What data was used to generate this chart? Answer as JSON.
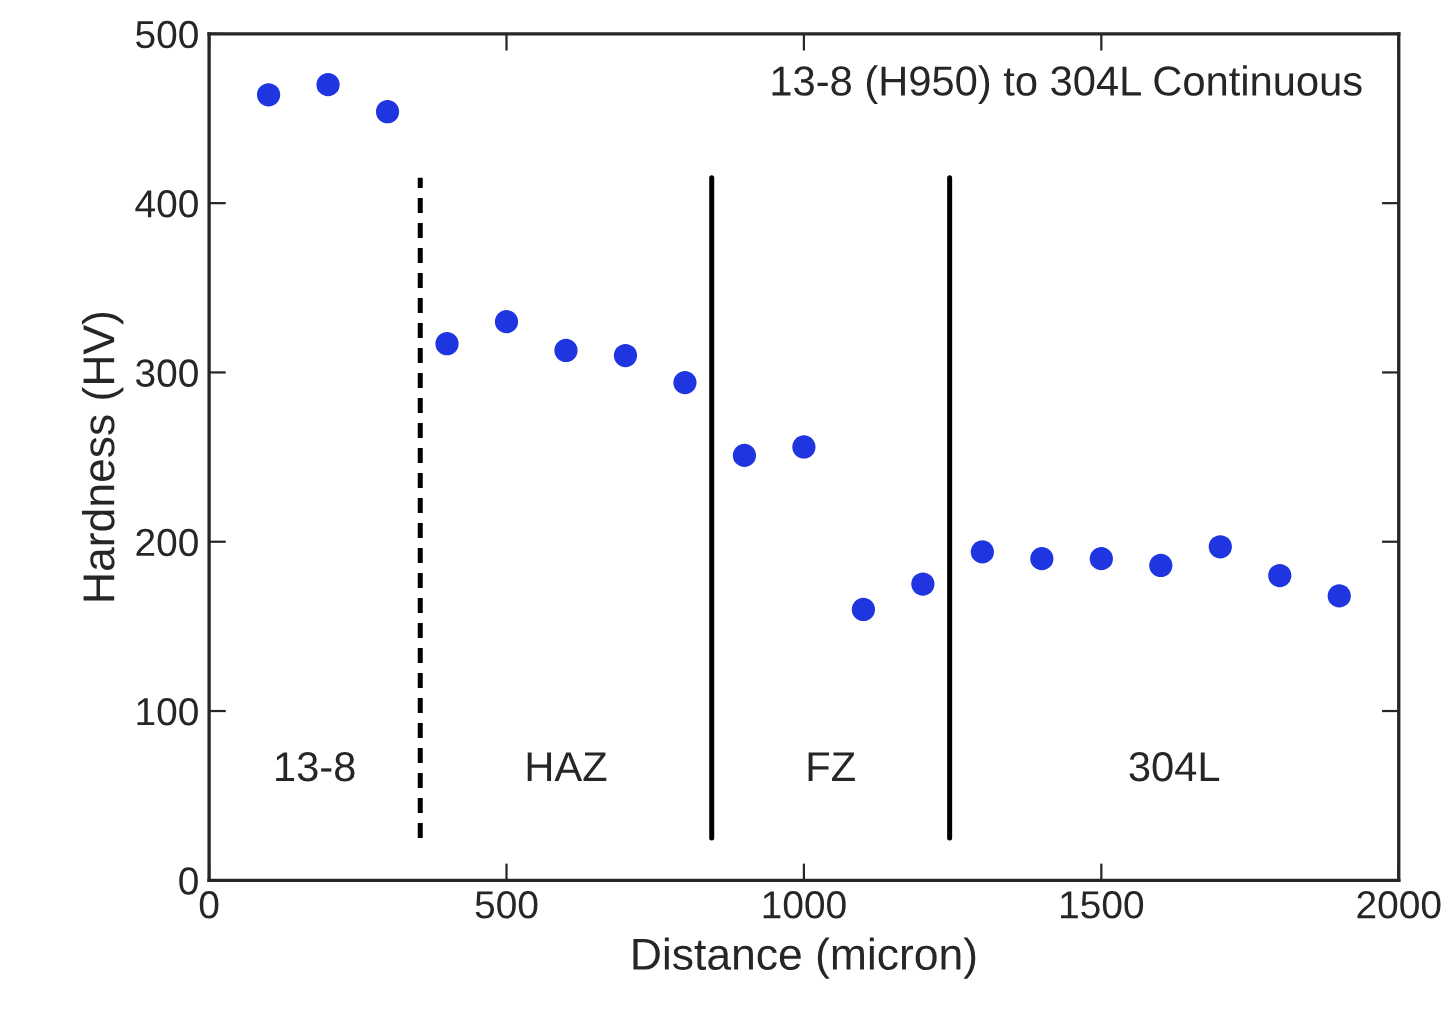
{
  "chart_data": {
    "type": "scatter",
    "title": "13-8 (H950) to 304L Continuous",
    "xlabel": "Distance (micron)",
    "ylabel": "Hardness (HV)",
    "x": [
      100,
      200,
      300,
      400,
      500,
      600,
      700,
      800,
      900,
      1000,
      1100,
      1200,
      1300,
      1400,
      1500,
      1600,
      1700,
      1800,
      1900
    ],
    "series": [
      {
        "color": "#1f35e0",
        "values": [
          464,
          470,
          454,
          317,
          330,
          313,
          310,
          294,
          251,
          256,
          160,
          175,
          194,
          190,
          190,
          186,
          197,
          180,
          168
        ]
      }
    ],
    "marker": "circle",
    "grid": false,
    "legend": false,
    "xlim": [
      0,
      2000
    ],
    "xticks": [
      0,
      500,
      1000,
      1500,
      2000
    ],
    "ylim": [
      0,
      500
    ],
    "yticks": [
      0,
      100,
      200,
      300,
      400,
      500
    ],
    "ref_lines": [
      {
        "axis": "x",
        "value": 355,
        "line_style": "dashed"
      },
      {
        "axis": "x",
        "value": 845,
        "line_style": "solid"
      },
      {
        "axis": "x",
        "value": 1245,
        "line_style": "solid"
      }
    ],
    "annotations": [
      "13-8",
      "HAZ",
      "FZ",
      "304L"
    ]
  }
}
